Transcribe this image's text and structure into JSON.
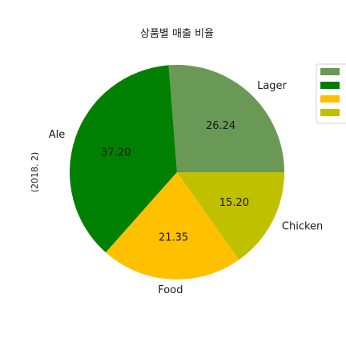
{
  "chart_data": {
    "type": "pie",
    "title": "상품별 매출 비율",
    "ylabel": "(2018. 2)",
    "categories": [
      "Lager",
      "Ale",
      "Food",
      "Chicken"
    ],
    "values": [
      26.24,
      37.2,
      21.35,
      15.2
    ],
    "value_labels": [
      "26.24",
      "37.20",
      "21.35",
      "15.20"
    ],
    "colors": [
      "#6a9955",
      "#008000",
      "#ffc000",
      "#bfc000"
    ],
    "start_angle_deg": 0,
    "direction": "counterclockwise",
    "legend": {
      "placement": "right",
      "entries": [
        "",
        "",
        "",
        ""
      ]
    }
  }
}
